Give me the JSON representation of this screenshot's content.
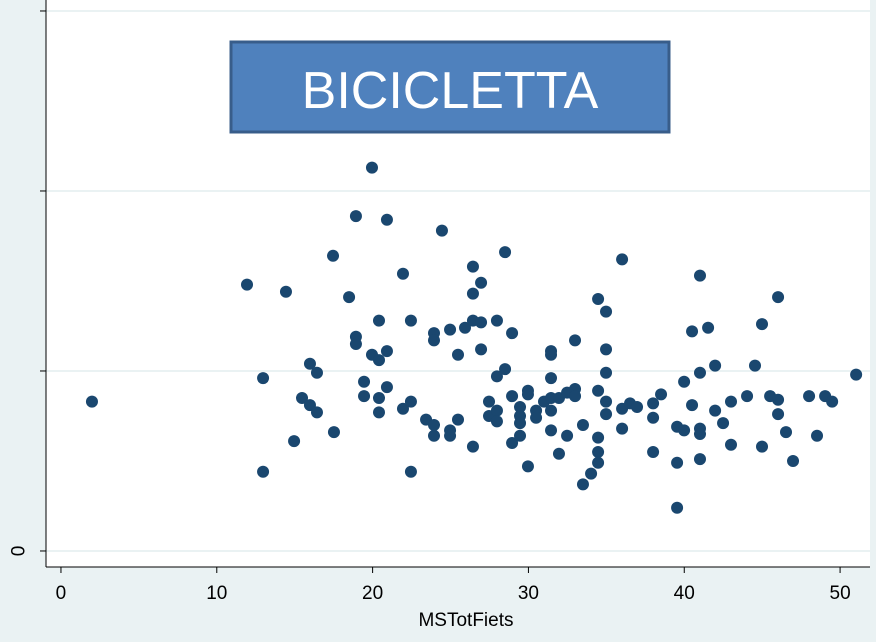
{
  "chart_data": {
    "type": "scatter",
    "title": "BICICLETTA",
    "x_label": "MSTotFiets",
    "color": "#1a476f",
    "grid": true,
    "xlim": [
      -0.96,
      51.92
    ],
    "xticks": [
      0,
      10,
      20,
      30,
      40,
      50
    ],
    "ylim": [
      -0.089,
      3.061
    ],
    "yticks": [
      0
    ],
    "ytick_marks": [
      1,
      2,
      3
    ],
    "x": [
      1.99,
      11.94,
      12.97,
      12.97,
      14.44,
      14.96,
      15.47,
      15.98,
      15.98,
      16.43,
      16.43,
      17.46,
      17.52,
      18.49,
      18.93,
      18.93,
      18.93,
      19.45,
      19.45,
      19.96,
      19.96,
      20.41,
      20.41,
      20.41,
      20.41,
      20.92,
      20.92,
      20.92,
      21.95,
      21.95,
      22.46,
      22.46,
      22.46,
      23.43,
      23.94,
      23.94,
      23.94,
      23.94,
      24.45,
      24.97,
      24.97,
      24.97,
      25.48,
      25.48,
      25.93,
      26.44,
      26.44,
      26.44,
      26.44,
      26.96,
      26.96,
      26.96,
      27.47,
      27.47,
      27.98,
      27.98,
      27.98,
      27.98,
      28.5,
      28.5,
      28.95,
      28.95,
      28.95,
      29.46,
      29.46,
      29.46,
      29.46,
      29.97,
      29.97,
      29.97,
      30.49,
      30.49,
      31.0,
      31.45,
      31.45,
      31.45,
      31.45,
      31.45,
      31.45,
      31.96,
      31.96,
      32.48,
      32.48,
      32.99,
      32.99,
      32.99,
      33.5,
      33.5,
      34.02,
      34.47,
      34.47,
      34.47,
      34.47,
      34.47,
      34.98,
      34.98,
      34.98,
      34.98,
      34.98,
      36.01,
      36.01,
      36.01,
      36.52,
      36.97,
      38.0,
      38.0,
      38.0,
      38.51,
      39.54,
      39.54,
      39.54,
      39.99,
      39.99,
      40.5,
      40.5,
      41.01,
      41.01,
      41.01,
      41.01,
      41.01,
      41.53,
      41.98,
      41.98,
      42.49,
      43.0,
      43.0,
      44.03,
      44.54,
      44.99,
      44.99,
      45.51,
      46.02,
      46.02,
      46.02,
      46.53,
      46.98,
      48.01,
      48.52,
      49.04,
      49.49,
      51.03
    ],
    "values": [
      0.83,
      1.48,
      0.96,
      0.44,
      1.44,
      0.61,
      0.85,
      1.04,
      0.81,
      0.99,
      0.77,
      1.64,
      0.66,
      1.41,
      1.86,
      1.19,
      1.15,
      0.94,
      0.86,
      2.13,
      1.09,
      1.28,
      1.06,
      0.85,
      0.77,
      1.84,
      1.11,
      0.91,
      1.54,
      0.79,
      1.28,
      0.83,
      0.44,
      0.73,
      1.21,
      1.17,
      0.7,
      0.64,
      1.78,
      1.23,
      0.67,
      0.64,
      1.09,
      0.73,
      1.24,
      1.58,
      1.43,
      1.28,
      0.58,
      1.49,
      1.27,
      1.12,
      0.83,
      0.75,
      1.28,
      0.97,
      0.78,
      0.72,
      1.66,
      1.01,
      1.21,
      0.86,
      0.6,
      0.8,
      0.75,
      0.71,
      0.64,
      0.89,
      0.87,
      0.47,
      0.78,
      0.74,
      0.83,
      1.11,
      1.09,
      0.96,
      0.85,
      0.78,
      0.67,
      0.85,
      0.54,
      0.88,
      0.64,
      1.17,
      0.9,
      0.86,
      0.7,
      0.37,
      0.43,
      1.4,
      0.89,
      0.63,
      0.55,
      0.49,
      1.33,
      1.12,
      0.99,
      0.83,
      0.76,
      1.62,
      0.79,
      0.68,
      0.82,
      0.8,
      0.82,
      0.74,
      0.55,
      0.87,
      0.69,
      0.49,
      0.24,
      0.94,
      0.67,
      1.22,
      0.81,
      1.53,
      0.99,
      0.68,
      0.65,
      0.51,
      1.24,
      1.03,
      0.78,
      0.71,
      0.83,
      0.59,
      0.86,
      1.03,
      1.26,
      0.58,
      0.86,
      1.41,
      0.84,
      0.76,
      0.66,
      0.5,
      0.86,
      0.64,
      0.86,
      0.83,
      0.98
    ]
  }
}
